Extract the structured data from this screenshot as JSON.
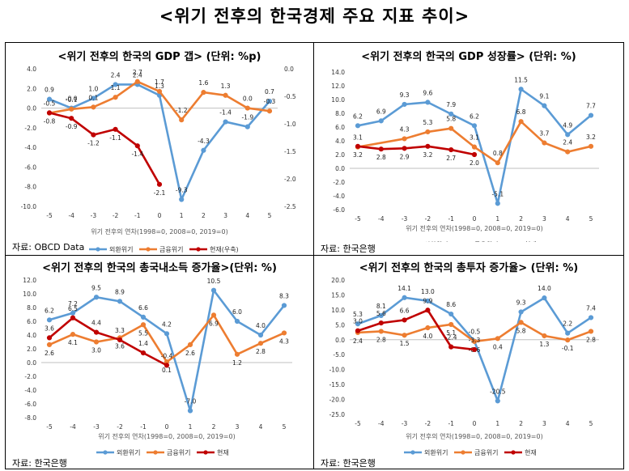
{
  "title": "<위기 전후의 한국경제 주요 지표 추이>",
  "chart_data": [
    {
      "type": "line",
      "title": "<위기 전후의 한국의 GDP 갭> (단위: %p)",
      "xlabel": "위기 전후의 연차(1998=0, 2008=0, 2019=0)",
      "x": [
        -5,
        -4,
        -3,
        -2,
        -1,
        0,
        1,
        2,
        3,
        4,
        5
      ],
      "ylim": [
        -10.0,
        4.0
      ],
      "yticks": [
        "4.0",
        "2.0",
        "0.0",
        "-2.0",
        "-4.0",
        "-6.0",
        "-8.0",
        "-10.0"
      ],
      "y2lim": [
        -2.5,
        0.0
      ],
      "y2ticks": [
        "0.0",
        "-0.5",
        "-1.0",
        "-1.5",
        "-2.0",
        "-2.5"
      ],
      "source": "자료: OBCD Data",
      "series": [
        {
          "name": "외환위기",
          "color": "#5b9bd5",
          "axis": "left",
          "values": [
            0.9,
            -0.0,
            1.0,
            2.4,
            2.4,
            1.3,
            -9.3,
            -4.3,
            -1.4,
            -1.9,
            0.7
          ],
          "labels": [
            "0.9",
            "-0.0",
            "1.0",
            "2.4",
            "2.4",
            "1.3",
            "-9.3",
            "-4.3",
            "-1.4",
            "-1.9",
            "0.7"
          ]
        },
        {
          "name": "금융위기",
          "color": "#ed7d31",
          "axis": "left",
          "values": [
            -0.5,
            -0.1,
            0.1,
            1.1,
            2.7,
            1.7,
            -1.2,
            1.6,
            1.3,
            0.0,
            -0.3
          ],
          "labels": [
            "-0.5",
            "-0.1",
            "0.1",
            "1.1",
            "2.7",
            "1.7",
            "-1.2",
            "1.6",
            "1.3",
            "0.0",
            "-0.3"
          ]
        },
        {
          "name": "현재(우축)",
          "color": "#c00000",
          "axis": "right",
          "x": [
            -5,
            -4,
            -3,
            -2,
            -1,
            0
          ],
          "values": [
            -0.8,
            -0.9,
            -1.2,
            -1.1,
            -1.4,
            -2.1
          ],
          "labels": [
            "-0.8",
            "-0.9",
            "-1.2",
            "-1.1",
            "-1.4",
            "-2.1"
          ]
        }
      ]
    },
    {
      "type": "line",
      "title": "<위기 전후의 한국의 GDP 성장률> (단위: %)",
      "xlabel": "위기 전후의 연차(1998=0, 2008=0, 2019=0)",
      "x": [
        -5,
        -4,
        -3,
        -2,
        -1,
        0,
        1,
        2,
        3,
        4,
        5
      ],
      "ylim": [
        -6.0,
        14.0
      ],
      "yticks": [
        "14.0",
        "12.0",
        "10.0",
        "8.0",
        "6.0",
        "4.0",
        "2.0",
        "0.0",
        "-2.0",
        "-4.0",
        "-6.0"
      ],
      "source": "자료: 한국은행",
      "series": [
        {
          "name": "외환위기",
          "color": "#5b9bd5",
          "values": [
            6.2,
            6.9,
            9.3,
            9.6,
            7.9,
            6.2,
            -5.1,
            11.5,
            9.1,
            4.9,
            7.7
          ],
          "labels": [
            "6.2",
            "6.9",
            "9.3",
            "9.6",
            "7.9",
            "6.2",
            "-5.1",
            "11.5",
            "9.1",
            "4.9",
            "7.7"
          ]
        },
        {
          "name": "금융위기",
          "color": "#ed7d31",
          "values": [
            3.1,
            4.3,
            5.3,
            5.8,
            3.1,
            0.8,
            6.8,
            3.7,
            2.4,
            3.2
          ],
          "x": [
            -5,
            -3,
            -2,
            -1,
            0,
            1,
            2,
            3,
            4,
            5
          ],
          "labels": [
            "3.1",
            "4.3",
            "5.3",
            "5.8",
            "3.1",
            "0.8",
            "6.8",
            "3.7",
            "2.4",
            "3.2"
          ]
        },
        {
          "name": "현재",
          "color": "#c00000",
          "x": [
            -5,
            -4,
            -3,
            -2,
            -1,
            0
          ],
          "values": [
            3.2,
            2.8,
            2.9,
            3.2,
            2.7,
            2.0
          ],
          "labels": [
            "3.2",
            "2.8",
            "2.9",
            "3.2",
            "2.7",
            "2.0"
          ]
        }
      ]
    },
    {
      "type": "line",
      "title": "<위기 전후의 한국의 총국내소득 증가율>(단위: %)",
      "xlabel": "위기 전후의 연차(1998=0, 2008=0, 2019=0)",
      "x": [
        -5,
        -4,
        -3,
        -2,
        -1,
        0,
        1,
        2,
        3,
        4,
        5
      ],
      "ylim": [
        -8.0,
        12.0
      ],
      "yticks": [
        "12.0",
        "10.0",
        "8.0",
        "6.0",
        "4.0",
        "2.0",
        "0.0",
        "-2.0",
        "-4.0",
        "-6.0",
        "-8.0"
      ],
      "source": "자료: 한국은행",
      "series": [
        {
          "name": "외환위기",
          "color": "#5b9bd5",
          "values": [
            6.2,
            7.2,
            9.5,
            8.9,
            6.6,
            4.2,
            -7.0,
            10.5,
            6.0,
            4.0,
            8.3
          ],
          "labels": [
            "6.2",
            "7.2",
            "9.5",
            "8.9",
            "6.6",
            "4.2",
            "-7.0",
            "10.5",
            "6.0",
            "4.0",
            "8.3"
          ]
        },
        {
          "name": "금융위기",
          "color": "#ed7d31",
          "values": [
            2.6,
            4.1,
            3.0,
            3.6,
            5.5,
            0.1,
            2.6,
            6.9,
            1.2,
            2.8,
            4.3
          ],
          "labels": [
            "2.6",
            "4.1",
            "3.0",
            "3.6",
            "5.5",
            "0.1",
            "2.6",
            "6.9",
            "1.2",
            "2.8",
            "4.3"
          ]
        },
        {
          "name": "현재",
          "color": "#c00000",
          "x": [
            -5,
            -4,
            -3,
            -2,
            -1,
            0
          ],
          "values": [
            3.6,
            6.5,
            4.4,
            3.3,
            1.4,
            -0.4
          ],
          "labels": [
            "3.6",
            "6.5",
            "4.4",
            "3.3",
            "1.4",
            "-0.4"
          ]
        }
      ]
    },
    {
      "type": "line",
      "title": "<위기 전후의 한국의 총투자 증가율> (단위: %)",
      "xlabel": "위기 전후의 연차(1998=0, 2008=0, 2019=0)",
      "x": [
        -5,
        -4,
        -3,
        -2,
        -1,
        0,
        1,
        2,
        3,
        4,
        5
      ],
      "ylim": [
        -25.0,
        20.0
      ],
      "yticks": [
        "20.0",
        "15.0",
        "10.0",
        "5.0",
        "0.0",
        "-5.0",
        "-10.0",
        "-15.0",
        "-20.0",
        "-25.0"
      ],
      "source": "자료: 한국은행",
      "series": [
        {
          "name": "외환위기",
          "color": "#5b9bd5",
          "values": [
            5.3,
            8.1,
            14.1,
            13.0,
            8.6,
            -0.5,
            -20.5,
            9.3,
            14.0,
            2.2,
            7.4
          ],
          "labels": [
            "5.3",
            "8.1",
            "14.1",
            "13.0",
            "8.6",
            "-0.5",
            "-20.5",
            "9.3",
            "14.0",
            "2.2",
            "7.4"
          ]
        },
        {
          "name": "금융위기",
          "color": "#ed7d31",
          "values": [
            2.4,
            2.8,
            1.5,
            4.0,
            5.1,
            -0.6,
            0.4,
            5.8,
            1.3,
            -0.1,
            2.8
          ],
          "labels": [
            "2.4",
            "2.8",
            "1.5",
            "4.0",
            "5.1",
            "-0.6",
            "0.4",
            "5.8",
            "1.3",
            "-0.1",
            "2.8"
          ]
        },
        {
          "name": "현재",
          "color": "#c00000",
          "x": [
            -5,
            -4,
            -3,
            -2,
            -1,
            0
          ],
          "values": [
            3.0,
            5.6,
            6.6,
            9.9,
            -2.4,
            -3.3
          ],
          "labels": [
            "3.0",
            "5.6",
            "6.6",
            "9.9",
            "-2.4",
            "-3.3"
          ]
        }
      ]
    }
  ]
}
